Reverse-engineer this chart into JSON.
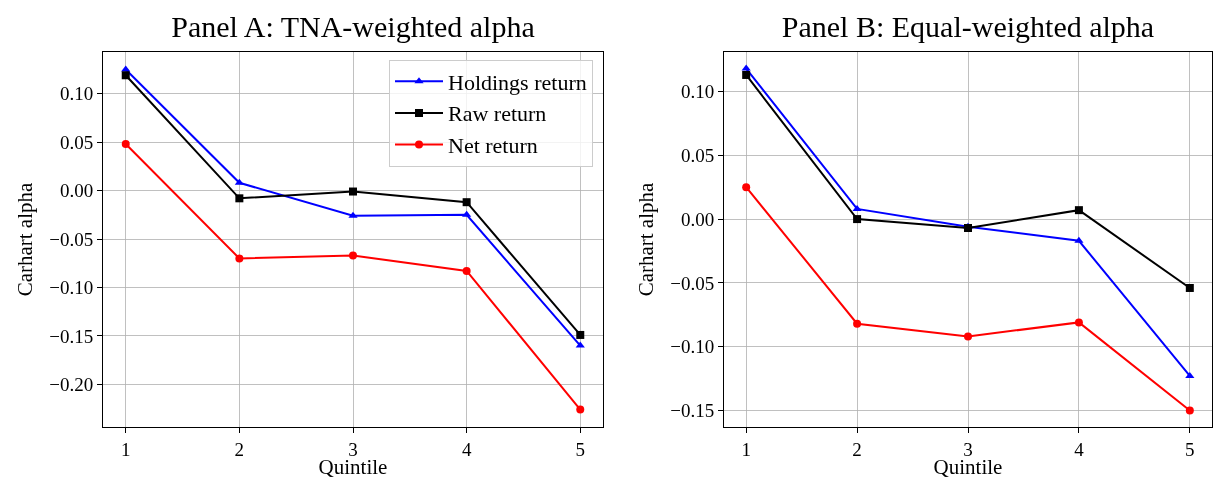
{
  "chart_data": [
    {
      "type": "line",
      "title": "Panel A: TNA-weighted alpha",
      "xlabel": "Quintile",
      "ylabel": "Carhart alpha",
      "x": [
        1,
        2,
        3,
        4,
        5
      ],
      "xlim": [
        0.8,
        5.2
      ],
      "xticks": [
        1,
        2,
        3,
        4,
        5
      ],
      "ylim": [
        -0.244,
        0.143
      ],
      "yticks": [
        {
          "value": -0.2,
          "label": "−0.20"
        },
        {
          "value": -0.15,
          "label": "−0.15"
        },
        {
          "value": -0.1,
          "label": "−0.10"
        },
        {
          "value": -0.05,
          "label": "−0.05"
        },
        {
          "value": 0,
          "label": "0.00"
        },
        {
          "value": 0.05,
          "label": "0.05"
        },
        {
          "value": 0.1,
          "label": "0.10"
        }
      ],
      "grid": true,
      "legend": "top right",
      "series": [
        {
          "name": "Holdings return",
          "color": "#0000ff",
          "marker": "triangle",
          "values": [
            0.125,
            0.008,
            -0.026,
            -0.025,
            -0.16
          ]
        },
        {
          "name": "Raw return",
          "color": "#000000",
          "marker": "square",
          "values": [
            0.119,
            -0.008,
            -0.001,
            -0.012,
            -0.149
          ]
        },
        {
          "name": "Net return",
          "color": "#ff0000",
          "marker": "circle",
          "values": [
            0.048,
            -0.07,
            -0.067,
            -0.083,
            -0.226
          ]
        }
      ]
    },
    {
      "type": "line",
      "title": "Panel B: Equal-weighted alpha",
      "xlabel": "Quintile",
      "ylabel": "Carhart alpha",
      "x": [
        1,
        2,
        3,
        4,
        5
      ],
      "xlim": [
        0.8,
        5.2
      ],
      "xticks": [
        1,
        2,
        3,
        4,
        5
      ],
      "ylim": [
        -0.163,
        0.131
      ],
      "yticks": [
        {
          "value": -0.15,
          "label": "−0.15"
        },
        {
          "value": -0.1,
          "label": "−0.10"
        },
        {
          "value": -0.05,
          "label": "−0.05"
        },
        {
          "value": 0,
          "label": "0.00"
        },
        {
          "value": 0.05,
          "label": "0.05"
        },
        {
          "value": 0.1,
          "label": "0.10"
        }
      ],
      "grid": true,
      "series": [
        {
          "color": "#0000ff",
          "marker": "triangle",
          "values": [
            0.118,
            0.008,
            -0.006,
            -0.017,
            -0.123
          ]
        },
        {
          "color": "#000000",
          "marker": "square",
          "values": [
            0.113,
            0.0,
            -0.007,
            0.007,
            -0.054
          ]
        },
        {
          "color": "#ff0000",
          "marker": "circle",
          "values": [
            0.025,
            -0.082,
            -0.092,
            -0.081,
            -0.15
          ]
        }
      ]
    }
  ]
}
